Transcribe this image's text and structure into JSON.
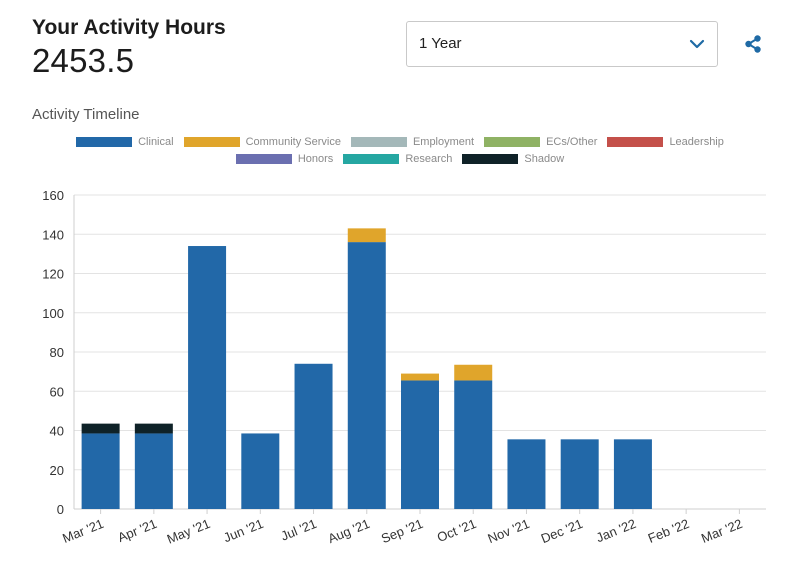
{
  "header": {
    "title": "Your Activity Hours",
    "total": "2453.5"
  },
  "period_select": {
    "value": "1 Year"
  },
  "icons": {
    "share": "share-icon",
    "dropdown": "chevron-down-icon"
  },
  "colors": {
    "accent": "#1f6aa5"
  },
  "chart_data": {
    "type": "bar",
    "stacked": true,
    "title": "Activity Timeline",
    "xlabel": "",
    "ylabel": "",
    "ylim": [
      0,
      160
    ],
    "yticks": [
      0,
      20,
      40,
      60,
      80,
      100,
      120,
      140,
      160
    ],
    "grid": true,
    "legend_position": "top-center",
    "categories": [
      "Mar '21",
      "Apr '21",
      "May '21",
      "Jun '21",
      "Jul '21",
      "Aug '21",
      "Sep '21",
      "Oct '21",
      "Nov '21",
      "Dec '21",
      "Jan '22",
      "Feb '22",
      "Mar '22"
    ],
    "series": [
      {
        "name": "Clinical",
        "color": "#2268a8",
        "values": [
          38.5,
          38.5,
          134,
          38.5,
          74,
          136,
          65.5,
          65.5,
          35.5,
          35.5,
          35.5,
          0,
          0
        ]
      },
      {
        "name": "Community Service",
        "color": "#e0a52b",
        "values": [
          0,
          0,
          0,
          0,
          0,
          7,
          3.5,
          8,
          0,
          0,
          0,
          0,
          0
        ]
      },
      {
        "name": "Employment",
        "color": "#a4b8b9",
        "values": [
          0,
          0,
          0,
          0,
          0,
          0,
          0,
          0,
          0,
          0,
          0,
          0,
          0
        ]
      },
      {
        "name": "ECs/Other",
        "color": "#8fb264",
        "values": [
          0,
          0,
          0,
          0,
          0,
          0,
          0,
          0,
          0,
          0,
          0,
          0,
          0
        ]
      },
      {
        "name": "Leadership",
        "color": "#c4504a",
        "values": [
          0,
          0,
          0,
          0,
          0,
          0,
          0,
          0,
          0,
          0,
          0,
          0,
          0
        ]
      },
      {
        "name": "Honors",
        "color": "#6b6fb0",
        "values": [
          0,
          0,
          0,
          0,
          0,
          0,
          0,
          0,
          0,
          0,
          0,
          0,
          0
        ]
      },
      {
        "name": "Research",
        "color": "#25a7a2",
        "values": [
          0,
          0,
          0,
          0,
          0,
          0,
          0,
          0,
          0,
          0,
          0,
          0,
          0
        ]
      },
      {
        "name": "Shadow",
        "color": "#0f2228",
        "values": [
          5,
          5,
          0,
          0,
          0,
          0,
          0,
          0,
          0,
          0,
          0,
          0,
          0
        ]
      }
    ]
  }
}
